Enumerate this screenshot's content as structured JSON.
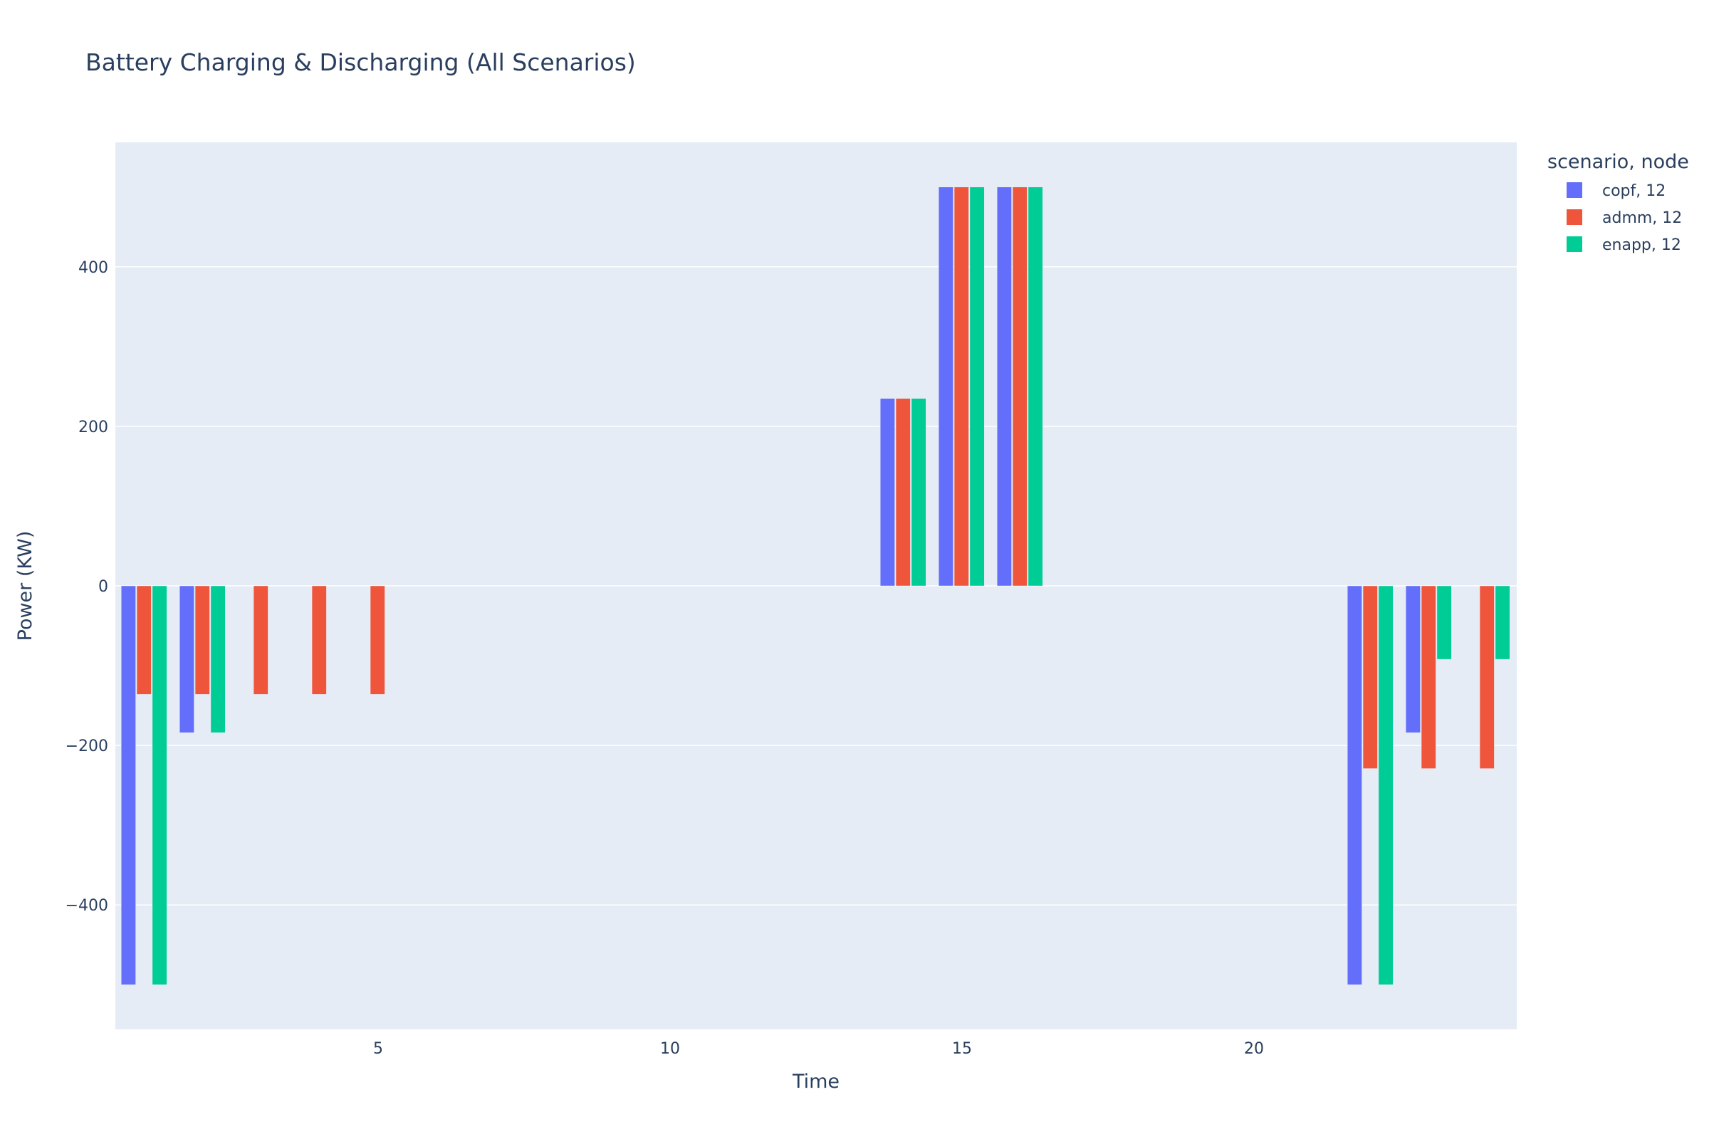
{
  "chart_data": {
    "type": "bar",
    "title": "Battery Charging & Discharging (All Scenarios)",
    "xlabel": "Time",
    "ylabel": "Power (KW)",
    "legend_title": "scenario, node",
    "legend_position": "top-right",
    "barmode": "group",
    "grid": true,
    "xlim": [
      0.5,
      24.5
    ],
    "ylim": [
      -556,
      556
    ],
    "x_ticks": [
      5,
      10,
      15,
      20
    ],
    "x_tick_labels": [
      "5",
      "10",
      "15",
      "20"
    ],
    "y_ticks": [
      -400,
      -200,
      0,
      200,
      400
    ],
    "y_tick_labels": [
      "−400",
      "−200",
      "0",
      "200",
      "400"
    ],
    "x": [
      1,
      2,
      3,
      4,
      5,
      6,
      7,
      8,
      9,
      10,
      11,
      12,
      13,
      14,
      15,
      16,
      17,
      18,
      19,
      20,
      21,
      22,
      23,
      24
    ],
    "series": [
      {
        "name": "copf, 12",
        "color": "#636efa",
        "values": [
          -500,
          -184,
          0,
          0,
          0,
          0,
          0,
          0,
          0,
          0,
          0,
          0,
          0,
          235,
          500,
          500,
          0,
          0,
          0,
          0,
          0,
          -500,
          -184,
          0
        ]
      },
      {
        "name": "admm, 12",
        "color": "#ef553b",
        "values": [
          -136,
          -136,
          -136,
          -136,
          -136,
          0,
          0,
          0,
          0,
          0,
          0,
          0,
          0,
          235,
          500,
          500,
          0,
          0,
          0,
          0,
          0,
          -229,
          -229,
          -229
        ]
      },
      {
        "name": "enapp, 12",
        "color": "#00cc96",
        "values": [
          -500,
          -184,
          0,
          0,
          0,
          0,
          0,
          0,
          0,
          0,
          0,
          0,
          0,
          235,
          500,
          500,
          0,
          0,
          0,
          0,
          0,
          -500,
          -92,
          -92
        ]
      }
    ],
    "colors": {
      "plot_background": "#e5ecf6",
      "grid": "#ffffff",
      "text": "#2a3f5f"
    }
  }
}
